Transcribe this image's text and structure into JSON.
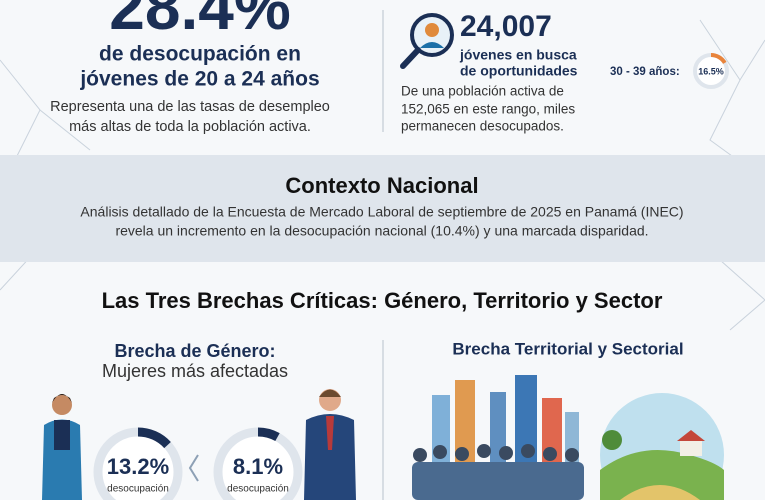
{
  "header": {
    "youth_rate": "28.4%",
    "youth_rate_caption": [
      "de desocupación en",
      "jóvenes de 20 a 24 años"
    ],
    "youth_rate_note": [
      "Representa una de las tasas de desempleo",
      "más altas de toda la población activa."
    ],
    "job_seekers": "24,007",
    "job_seekers_caption": [
      "jóvenes en busca",
      "de oportunidades"
    ],
    "job_seekers_note": [
      "De una población activa de",
      "152,065 en este rango, miles",
      "permanecen desocupados."
    ],
    "age_group": {
      "label": "30 - 39 años:",
      "rate": {
        "value": 16.5,
        "label": "16.5%"
      }
    }
  },
  "context": {
    "title": "Contexto Nacional",
    "text": [
      "Análisis detallado de la Encuesta de Mercado Laboral de septiembre de 2025 en Panamá (INEC)",
      "revela un incremento en la desocupación nacional (10.4%) y una marcada disparidad."
    ]
  },
  "gaps": {
    "title": "Las Tres Brechas Críticas: Género, Territorio y Sector",
    "gender": {
      "title": "Brecha de Género:",
      "subtitle": "Mujeres más afectadas",
      "women": {
        "rate": {
          "value": 13.2,
          "label": "13.2%"
        },
        "caption": "desocupación"
      },
      "men": {
        "rate": {
          "value": 8.1,
          "label": "8.1%"
        },
        "caption": "desocupación"
      }
    },
    "territorial": {
      "title": "Brecha Territorial y Sectorial"
    }
  }
}
